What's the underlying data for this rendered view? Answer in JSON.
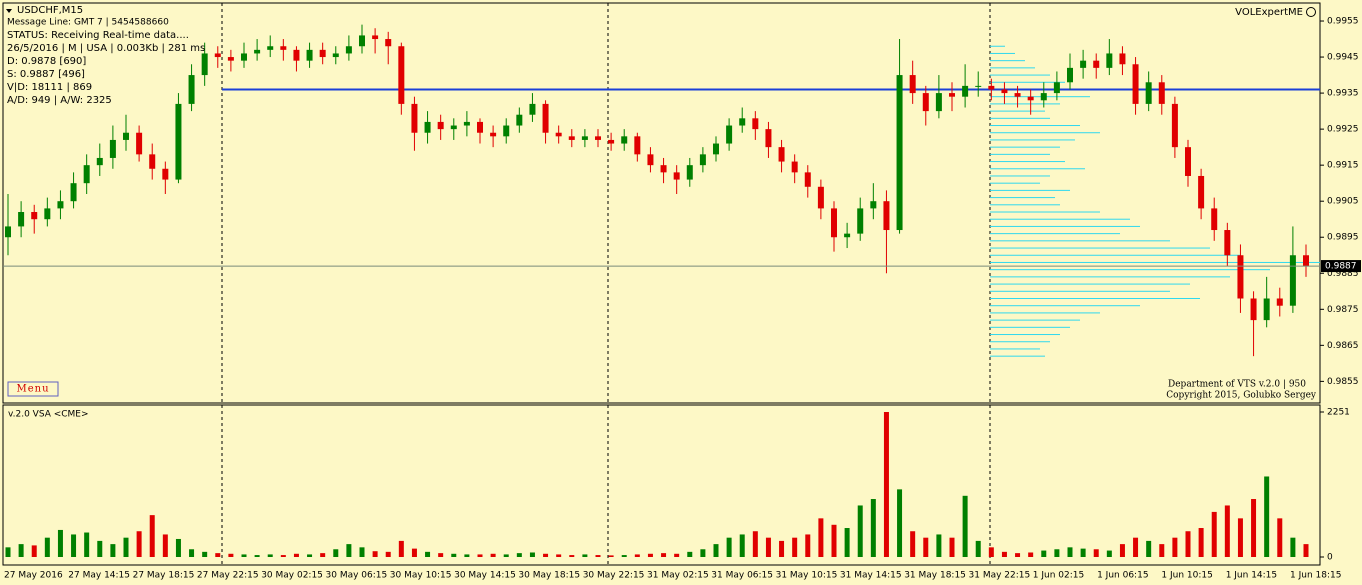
{
  "header": {
    "symbol": "USDCHF,M15",
    "message": "Message Line: GMT 7 | 5454588660",
    "status": "STATUS:  Receiving Real-time data....",
    "info": "26/5/2016 | M | USA | 0.003Kb | 281 ms",
    "d": "D: 0.9878  [690]",
    "s": "S: 0.9887  [496]",
    "vd": "V|D: 18111 | 869",
    "ad": "A/D: 949 | A/W: 2325",
    "brand": "VOLExpertME",
    "menu": "Menu",
    "credit1": "Department of VTS  v.2.0 | 950",
    "credit2": "Copyright 2015, Golubko Sergey"
  },
  "chart_data": [
    {
      "type": "candlestick",
      "ylim": [
        0.9849,
        0.996
      ],
      "yticks": [
        0.9955,
        0.9945,
        0.9935,
        0.9925,
        0.9915,
        0.9905,
        0.9895,
        0.9885,
        0.9875,
        0.9865,
        0.9855
      ],
      "up_color": "#008000",
      "down_color": "#e00000",
      "level": 0.9936,
      "level_color": "#1a3fd8",
      "current_price": 0.9887,
      "xtick_labels": [
        "27 May 2016",
        "27 May 14:15",
        "27 May 18:15",
        "27 May 22:15",
        "30 May 02:15",
        "30 May 06:15",
        "30 May 10:15",
        "30 May 14:15",
        "30 May 18:15",
        "30 May 22:15",
        "31 May 02:15",
        "31 May 06:15",
        "31 May 10:15",
        "31 May 14:15",
        "31 May 18:15",
        "31 May 22:15",
        "1 Jun 02:15",
        "1 Jun 06:15",
        "1 Jun 10:15",
        "1 Jun 14:15",
        "1 Jun 18:15"
      ],
      "ohlc": [
        [
          0.9895,
          0.9907,
          0.989,
          0.9898
        ],
        [
          0.9898,
          0.9905,
          0.9895,
          0.9902
        ],
        [
          0.9902,
          0.9904,
          0.9896,
          0.99
        ],
        [
          0.99,
          0.9906,
          0.9898,
          0.9903
        ],
        [
          0.9903,
          0.9908,
          0.99,
          0.9905
        ],
        [
          0.9905,
          0.9913,
          0.9903,
          0.991
        ],
        [
          0.991,
          0.9918,
          0.9907,
          0.9915
        ],
        [
          0.9915,
          0.9921,
          0.9912,
          0.9917
        ],
        [
          0.9917,
          0.9926,
          0.9914,
          0.9922
        ],
        [
          0.9922,
          0.9929,
          0.9919,
          0.9924
        ],
        [
          0.9924,
          0.9926,
          0.9916,
          0.9918
        ],
        [
          0.9918,
          0.9921,
          0.9911,
          0.9914
        ],
        [
          0.9914,
          0.9916,
          0.9907,
          0.9911
        ],
        [
          0.9911,
          0.9935,
          0.991,
          0.9932
        ],
        [
          0.9932,
          0.9943,
          0.993,
          0.994
        ],
        [
          0.994,
          0.9949,
          0.9937,
          0.9946
        ],
        [
          0.9946,
          0.9948,
          0.9942,
          0.9945
        ],
        [
          0.9945,
          0.9947,
          0.9941,
          0.9944
        ],
        [
          0.9944,
          0.9949,
          0.9942,
          0.9946
        ],
        [
          0.9946,
          0.995,
          0.9944,
          0.9947
        ],
        [
          0.9947,
          0.9951,
          0.9945,
          0.9948
        ],
        [
          0.9948,
          0.995,
          0.9944,
          0.9947
        ],
        [
          0.9947,
          0.9948,
          0.9941,
          0.9944
        ],
        [
          0.9944,
          0.9949,
          0.9942,
          0.9947
        ],
        [
          0.9947,
          0.9949,
          0.9943,
          0.9945
        ],
        [
          0.9945,
          0.9948,
          0.9943,
          0.9946
        ],
        [
          0.9946,
          0.9951,
          0.9944,
          0.9948
        ],
        [
          0.9948,
          0.9954,
          0.9946,
          0.9951
        ],
        [
          0.9951,
          0.9953,
          0.9946,
          0.995
        ],
        [
          0.995,
          0.9952,
          0.9943,
          0.9948
        ],
        [
          0.9948,
          0.9949,
          0.9929,
          0.9932
        ],
        [
          0.9932,
          0.9934,
          0.9919,
          0.9924
        ],
        [
          0.9924,
          0.993,
          0.9921,
          0.9927
        ],
        [
          0.9927,
          0.9929,
          0.9922,
          0.9925
        ],
        [
          0.9925,
          0.9928,
          0.9922,
          0.9926
        ],
        [
          0.9926,
          0.993,
          0.9923,
          0.9927
        ],
        [
          0.9927,
          0.9928,
          0.9921,
          0.9924
        ],
        [
          0.9924,
          0.9926,
          0.992,
          0.9923
        ],
        [
          0.9923,
          0.9928,
          0.9921,
          0.9926
        ],
        [
          0.9926,
          0.9931,
          0.9924,
          0.9929
        ],
        [
          0.9929,
          0.9935,
          0.9927,
          0.9932
        ],
        [
          0.9932,
          0.9933,
          0.9921,
          0.9924
        ],
        [
          0.9924,
          0.9926,
          0.9921,
          0.9923
        ],
        [
          0.9923,
          0.9925,
          0.992,
          0.9922
        ],
        [
          0.9922,
          0.9925,
          0.992,
          0.9923
        ],
        [
          0.9923,
          0.9925,
          0.992,
          0.9922
        ],
        [
          0.9922,
          0.9924,
          0.9919,
          0.9921
        ],
        [
          0.9921,
          0.9925,
          0.9919,
          0.9923
        ],
        [
          0.9923,
          0.9924,
          0.9916,
          0.9918
        ],
        [
          0.9918,
          0.992,
          0.9913,
          0.9915
        ],
        [
          0.9915,
          0.9917,
          0.991,
          0.9913
        ],
        [
          0.9913,
          0.9915,
          0.9907,
          0.9911
        ],
        [
          0.9911,
          0.9917,
          0.9909,
          0.9915
        ],
        [
          0.9915,
          0.992,
          0.9913,
          0.9918
        ],
        [
          0.9918,
          0.9923,
          0.9916,
          0.9921
        ],
        [
          0.9921,
          0.9928,
          0.9919,
          0.9926
        ],
        [
          0.9926,
          0.9931,
          0.9924,
          0.9928
        ],
        [
          0.9928,
          0.993,
          0.9922,
          0.9925
        ],
        [
          0.9925,
          0.9927,
          0.9917,
          0.992
        ],
        [
          0.992,
          0.9922,
          0.9913,
          0.9916
        ],
        [
          0.9916,
          0.9918,
          0.991,
          0.9913
        ],
        [
          0.9913,
          0.9915,
          0.9906,
          0.9909
        ],
        [
          0.9909,
          0.9911,
          0.99,
          0.9903
        ],
        [
          0.9903,
          0.9905,
          0.9891,
          0.9895
        ],
        [
          0.9895,
          0.9899,
          0.9892,
          0.9896
        ],
        [
          0.9896,
          0.9906,
          0.9894,
          0.9903
        ],
        [
          0.9903,
          0.991,
          0.99,
          0.9905
        ],
        [
          0.9905,
          0.9908,
          0.9885,
          0.9897
        ],
        [
          0.9897,
          0.995,
          0.9896,
          0.994
        ],
        [
          0.994,
          0.9944,
          0.9932,
          0.9935
        ],
        [
          0.9935,
          0.9937,
          0.9926,
          0.993
        ],
        [
          0.993,
          0.994,
          0.9928,
          0.9935
        ],
        [
          0.9935,
          0.9938,
          0.993,
          0.9934
        ],
        [
          0.9934,
          0.9943,
          0.9931,
          0.9937
        ],
        [
          0.9937,
          0.9941,
          0.9934,
          0.9937
        ],
        [
          0.9937,
          0.9939,
          0.9933,
          0.9936
        ],
        [
          0.9936,
          0.9938,
          0.9932,
          0.9935
        ],
        [
          0.9935,
          0.9937,
          0.9931,
          0.9934
        ],
        [
          0.9934,
          0.9936,
          0.9929,
          0.9933
        ],
        [
          0.9933,
          0.9938,
          0.9931,
          0.9935
        ],
        [
          0.9935,
          0.9941,
          0.9933,
          0.9938
        ],
        [
          0.9938,
          0.9946,
          0.9936,
          0.9942
        ],
        [
          0.9942,
          0.9947,
          0.9939,
          0.9944
        ],
        [
          0.9944,
          0.9946,
          0.9939,
          0.9942
        ],
        [
          0.9942,
          0.995,
          0.994,
          0.9946
        ],
        [
          0.9946,
          0.9948,
          0.994,
          0.9943
        ],
        [
          0.9943,
          0.9945,
          0.9929,
          0.9932
        ],
        [
          0.9932,
          0.9941,
          0.993,
          0.9938
        ],
        [
          0.9938,
          0.994,
          0.9929,
          0.9932
        ],
        [
          0.9932,
          0.9934,
          0.9917,
          0.992
        ],
        [
          0.992,
          0.9922,
          0.9909,
          0.9912
        ],
        [
          0.9912,
          0.9914,
          0.99,
          0.9903
        ],
        [
          0.9903,
          0.9906,
          0.9894,
          0.9897
        ],
        [
          0.9897,
          0.9899,
          0.9887,
          0.989
        ],
        [
          0.989,
          0.9893,
          0.9874,
          0.9878
        ],
        [
          0.9878,
          0.988,
          0.9862,
          0.9872
        ],
        [
          0.9872,
          0.9884,
          0.987,
          0.9878
        ],
        [
          0.9878,
          0.9881,
          0.9873,
          0.9876
        ],
        [
          0.9876,
          0.9898,
          0.9874,
          0.989
        ],
        [
          0.989,
          0.9893,
          0.9884,
          0.9887
        ]
      ],
      "profile": {
        "color": "#30d8ee",
        "levels": [
          0.9948,
          0.9946,
          0.9944,
          0.9942,
          0.994,
          0.9938,
          0.9936,
          0.9934,
          0.9932,
          0.993,
          0.9928,
          0.9926,
          0.9924,
          0.9922,
          0.992,
          0.9918,
          0.9916,
          0.9914,
          0.9912,
          0.991,
          0.9908,
          0.9906,
          0.9904,
          0.9902,
          0.99,
          0.9898,
          0.9896,
          0.9894,
          0.9892,
          0.989,
          0.9888,
          0.9886,
          0.9884,
          0.9882,
          0.988,
          0.9878,
          0.9876,
          0.9874,
          0.9872,
          0.987,
          0.9868,
          0.9866,
          0.9864,
          0.9862
        ],
        "values": [
          15,
          25,
          35,
          45,
          60,
          75,
          90,
          100,
          70,
          55,
          60,
          90,
          110,
          85,
          70,
          60,
          75,
          95,
          60,
          50,
          80,
          65,
          70,
          110,
          140,
          150,
          130,
          180,
          220,
          250,
          330,
          280,
          240,
          200,
          180,
          210,
          150,
          110,
          90,
          80,
          70,
          60,
          50,
          55
        ]
      }
    },
    {
      "type": "bar",
      "title": "v.2.0 VSA <CME>",
      "ylim": [
        0,
        2251
      ],
      "yticks": [
        2251,
        0
      ],
      "values": [
        150,
        200,
        180,
        300,
        420,
        350,
        380,
        250,
        200,
        300,
        400,
        650,
        350,
        280,
        120,
        80,
        60,
        50,
        40,
        30,
        40,
        30,
        50,
        40,
        60,
        120,
        200,
        150,
        90,
        80,
        250,
        130,
        80,
        60,
        50,
        40,
        40,
        50,
        40,
        60,
        70,
        50,
        40,
        30,
        40,
        30,
        25,
        30,
        40,
        50,
        60,
        50,
        80,
        120,
        200,
        300,
        350,
        400,
        300,
        250,
        300,
        350,
        600,
        500,
        450,
        800,
        900,
        2251,
        1050,
        400,
        300,
        350,
        300,
        950,
        250,
        150,
        80,
        60,
        70,
        100,
        120,
        150,
        130,
        120,
        100,
        200,
        300,
        250,
        200,
        300,
        400,
        450,
        700,
        800,
        600,
        900,
        1250,
        600,
        300,
        200
      ]
    }
  ]
}
